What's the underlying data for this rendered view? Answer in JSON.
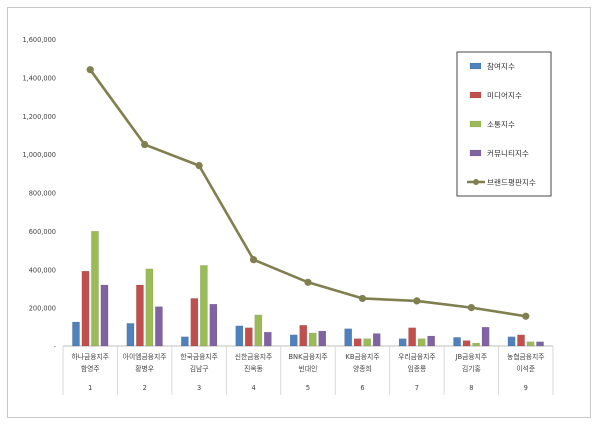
{
  "chart_data": {
    "type": "bar",
    "categories": [
      {
        "line1": "하나금융지주",
        "line2": "함영주",
        "index": "1"
      },
      {
        "line1": "아이엠금융지주",
        "line2": "황병우",
        "index": "2"
      },
      {
        "line1": "한국금융지주",
        "line2": "김남구",
        "index": "3"
      },
      {
        "line1": "신한금융지주",
        "line2": "진옥동",
        "index": "4"
      },
      {
        "line1": "BNK금융지주",
        "line2": "빈대인",
        "index": "5"
      },
      {
        "line1": "KB금융지주",
        "line2": "양종희",
        "index": "6"
      },
      {
        "line1": "우리금융지주",
        "line2": "임종룡",
        "index": "7"
      },
      {
        "line1": "JB금융지주",
        "line2": "김기홍",
        "index": "8"
      },
      {
        "line1": "농협금융지주",
        "line2": "이석준",
        "index": "9"
      }
    ],
    "series": [
      {
        "name": "참여지수",
        "type": "bar",
        "color": "#4f81bd",
        "values": [
          125000,
          118000,
          48000,
          105000,
          58000,
          90000,
          38000,
          45000,
          48000
        ]
      },
      {
        "name": "미디어지수",
        "type": "bar",
        "color": "#c0504d",
        "values": [
          390000,
          318000,
          248000,
          95000,
          108000,
          38000,
          95000,
          28000,
          58000
        ]
      },
      {
        "name": "소통지수",
        "type": "bar",
        "color": "#9bbb59",
        "values": [
          598000,
          402000,
          420000,
          162000,
          68000,
          38000,
          38000,
          15000,
          22000
        ]
      },
      {
        "name": "커뮤니티지수",
        "type": "bar",
        "color": "#8064a2",
        "values": [
          318000,
          205000,
          218000,
          72000,
          78000,
          65000,
          52000,
          98000,
          22000
        ]
      },
      {
        "name": "브랜드평판지수",
        "type": "line",
        "color": "#7f7f4f",
        "values": [
          1440000,
          1050000,
          940000,
          450000,
          332000,
          248000,
          235000,
          200000,
          155000
        ]
      }
    ],
    "y_ticks": [
      "-",
      "200,000",
      "400,000",
      "600,000",
      "800,000",
      "1,000,000",
      "1,200,000",
      "1,400,000",
      "1,600,000"
    ],
    "ylim": [
      0,
      1600000
    ],
    "grid": false,
    "legend_position": "right"
  }
}
